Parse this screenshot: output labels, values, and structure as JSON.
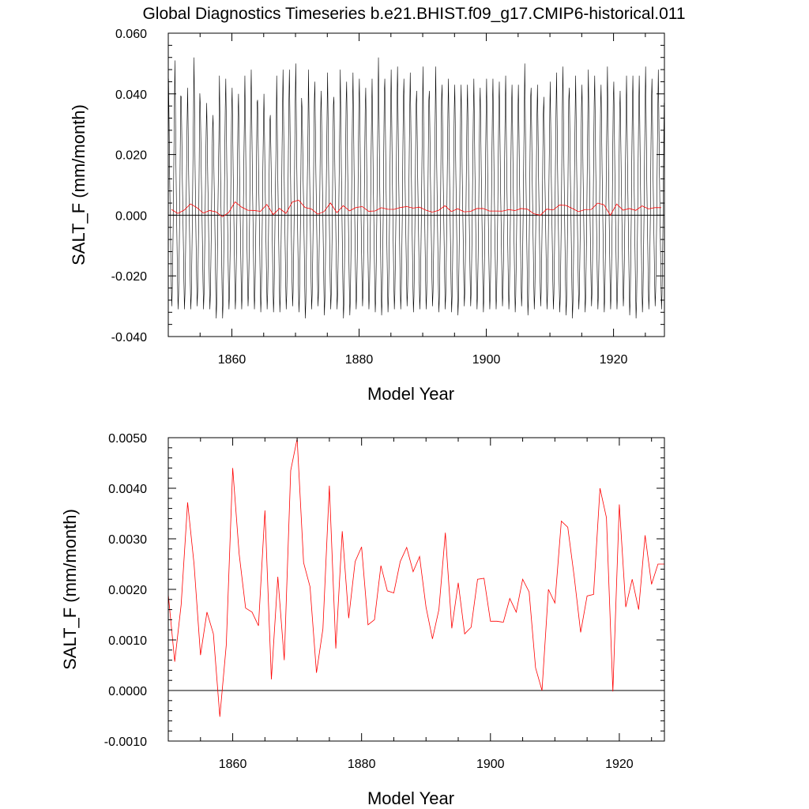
{
  "figure": {
    "title": "Global Diagnostics Timeseries b.e21.BHIST.f09_g17.CMIP6-historical.011"
  },
  "colors": {
    "monthly": "#000000",
    "annual": "#ff0000",
    "zero_line": "#000000"
  },
  "chart_data": [
    {
      "type": "line",
      "title": "Global Diagnostics Timeseries b.e21.BHIST.f09_g17.CMIP6-historical.011",
      "xlabel": "Model Year",
      "ylabel": "SALT_F (mm/month)",
      "xlim": [
        1850,
        1928
      ],
      "ylim": [
        -0.04,
        0.06
      ],
      "xticks": [
        1860,
        1880,
        1900,
        1920
      ],
      "xtick_labels": [
        "1860",
        "1880",
        "1900",
        "1920"
      ],
      "yticks": [
        -0.04,
        -0.02,
        0.0,
        0.02,
        0.04,
        0.06
      ],
      "ytick_labels": [
        "-0.040",
        "-0.020",
        "0.000",
        "0.020",
        "0.040",
        "0.060"
      ],
      "reference_line": 0.0,
      "series": [
        {
          "color": "#000000",
          "description": "monthly values, seasonal cycle roughly 12 samples per year",
          "start_year": 1850,
          "end_year": 1928,
          "monthly_cycle": [
            0.044,
            0.03,
            0.014,
            0.002,
            -0.01,
            -0.022,
            -0.031,
            -0.026,
            -0.014,
            0.0,
            0.018,
            0.034
          ],
          "annual_peaks": [
            0.045,
            0.051,
            0.039,
            0.042,
            0.052,
            0.036,
            0.037,
            0.033,
            0.046,
            0.045,
            0.042,
            0.04,
            0.046,
            0.048,
            0.038,
            0.04,
            0.033,
            0.046,
            0.048,
            0.048,
            0.05,
            0.035,
            0.048,
            0.044,
            0.041,
            0.047,
            0.039,
            0.048,
            0.044,
            0.047,
            0.045,
            0.042,
            0.045,
            0.052,
            0.045,
            0.048,
            0.049,
            0.045,
            0.047,
            0.041,
            0.049,
            0.041,
            0.049,
            0.043,
            0.045,
            0.043,
            0.043,
            0.043,
            0.045,
            0.042,
            0.045,
            0.045,
            0.044,
            0.046,
            0.043,
            0.043,
            0.05,
            0.042,
            0.043,
            0.039,
            0.044,
            0.047,
            0.049,
            0.042,
            0.046,
            0.043,
            0.048,
            0.046,
            0.043,
            0.049,
            0.044,
            0.041,
            0.046,
            0.046,
            0.046,
            0.049,
            0.045,
            0.048
          ],
          "annual_troughs": [
            -0.03,
            -0.031,
            -0.031,
            -0.031,
            -0.03,
            -0.031,
            -0.031,
            -0.034,
            -0.034,
            -0.031,
            -0.031,
            -0.031,
            -0.03,
            -0.031,
            -0.032,
            -0.031,
            -0.032,
            -0.032,
            -0.031,
            -0.03,
            -0.032,
            -0.034,
            -0.031,
            -0.03,
            -0.033,
            -0.031,
            -0.031,
            -0.034,
            -0.033,
            -0.031,
            -0.03,
            -0.031,
            -0.032,
            -0.033,
            -0.032,
            -0.031,
            -0.031,
            -0.03,
            -0.032,
            -0.031,
            -0.031,
            -0.03,
            -0.032,
            -0.031,
            -0.032,
            -0.033,
            -0.03,
            -0.03,
            -0.031,
            -0.032,
            -0.031,
            -0.031,
            -0.03,
            -0.031,
            -0.032,
            -0.03,
            -0.033,
            -0.031,
            -0.03,
            -0.031,
            -0.031,
            -0.032,
            -0.033,
            -0.034,
            -0.031,
            -0.032,
            -0.03,
            -0.031,
            -0.032,
            -0.031,
            -0.031,
            -0.03,
            -0.033,
            -0.034,
            -0.032,
            -0.031,
            -0.03,
            -0.031
          ]
        },
        {
          "color": "#ff0000",
          "description": "annual mean",
          "x": [
            1850.5,
            1851.5,
            1852.5,
            1853.5,
            1854.5,
            1855.5,
            1856.5,
            1857.5,
            1858.5,
            1859.5,
            1860.5,
            1861.5,
            1862.5,
            1863.5,
            1864.5,
            1865.5,
            1866.5,
            1867.5,
            1868.5,
            1869.5,
            1870.5,
            1871.5,
            1872.5,
            1873.5,
            1874.5,
            1875.5,
            1876.5,
            1877.5,
            1878.5,
            1879.5,
            1880.5,
            1881.5,
            1882.5,
            1883.5,
            1884.5,
            1885.5,
            1886.5,
            1887.5,
            1888.5,
            1889.5,
            1890.5,
            1891.5,
            1892.5,
            1893.5,
            1894.5,
            1895.5,
            1896.5,
            1897.5,
            1898.5,
            1899.5,
            1900.5,
            1901.5,
            1902.5,
            1903.5,
            1904.5,
            1905.5,
            1906.5,
            1907.5,
            1908.5,
            1909.5,
            1910.5,
            1911.5,
            1912.5,
            1913.5,
            1914.5,
            1915.5,
            1916.5,
            1917.5,
            1918.5,
            1919.5,
            1920.5,
            1921.5,
            1922.5,
            1923.5,
            1924.5,
            1925.5,
            1926.5,
            1927.5
          ],
          "y": [
            0.0019,
            0.00057,
            0.0017,
            0.00372,
            0.0025,
            0.0007,
            0.00155,
            0.00112,
            -0.00052,
            0.0009,
            0.0044,
            0.0027,
            0.00163,
            0.00155,
            0.00128,
            0.00356,
            0.00022,
            0.00225,
            0.0006,
            0.00435,
            0.00498,
            0.00253,
            0.00205,
            0.00035,
            0.00122,
            0.00405,
            0.00083,
            0.00315,
            0.00143,
            0.00255,
            0.00284,
            0.0013,
            0.0014,
            0.00247,
            0.00197,
            0.00193,
            0.00255,
            0.00283,
            0.00235,
            0.00265,
            0.00165,
            0.00102,
            0.0016,
            0.00312,
            0.00123,
            0.00213,
            0.00112,
            0.00125,
            0.0022,
            0.00222,
            0.00137,
            0.00137,
            0.00135,
            0.00182,
            0.00155,
            0.0022,
            0.00195,
            0.00045,
            0.0,
            0.002,
            0.00173,
            0.00335,
            0.00323,
            0.00225,
            0.00115,
            0.00187,
            0.0019,
            0.004,
            0.00342,
            -2e-05,
            0.00368,
            0.00165,
            0.0022,
            0.0016,
            0.00307,
            0.0021,
            0.0025,
            0.0025
          ]
        }
      ]
    },
    {
      "type": "line",
      "title": "",
      "xlabel": "Model Year",
      "ylabel": "SALT_F (mm/month)",
      "xlim": [
        1850,
        1927
      ],
      "ylim": [
        -0.001,
        0.005
      ],
      "xticks": [
        1860,
        1880,
        1900,
        1920
      ],
      "xtick_labels": [
        "1860",
        "1880",
        "1900",
        "1920"
      ],
      "yticks": [
        -0.001,
        0.0,
        0.001,
        0.002,
        0.003,
        0.004,
        0.005
      ],
      "ytick_labels": [
        "-0.0010",
        "0.0000",
        "0.0010",
        "0.0020",
        "0.0030",
        "0.0040",
        "0.0050"
      ],
      "reference_line": 0.0,
      "series": [
        {
          "color": "#ff0000",
          "description": "annual mean",
          "x": [
            1850,
            1851,
            1852,
            1853,
            1854,
            1855,
            1856,
            1857,
            1858,
            1859,
            1860,
            1861,
            1862,
            1863,
            1864,
            1865,
            1866,
            1867,
            1868,
            1869,
            1870,
            1871,
            1872,
            1873,
            1874,
            1875,
            1876,
            1877,
            1878,
            1879,
            1880,
            1881,
            1882,
            1883,
            1884,
            1885,
            1886,
            1887,
            1888,
            1889,
            1890,
            1891,
            1892,
            1893,
            1894,
            1895,
            1896,
            1897,
            1898,
            1899,
            1900,
            1901,
            1902,
            1903,
            1904,
            1905,
            1906,
            1907,
            1908,
            1909,
            1910,
            1911,
            1912,
            1913,
            1914,
            1915,
            1916,
            1917,
            1918,
            1919,
            1920,
            1921,
            1922,
            1923,
            1924,
            1925,
            1926,
            1927
          ],
          "y": [
            0.0019,
            0.00057,
            0.0017,
            0.00372,
            0.0025,
            0.0007,
            0.00155,
            0.00112,
            -0.00052,
            0.0009,
            0.0044,
            0.0027,
            0.00163,
            0.00155,
            0.00128,
            0.00356,
            0.00022,
            0.00225,
            0.0006,
            0.00435,
            0.00498,
            0.00253,
            0.00205,
            0.00035,
            0.00122,
            0.00405,
            0.00083,
            0.00315,
            0.00143,
            0.00255,
            0.00284,
            0.0013,
            0.0014,
            0.00247,
            0.00197,
            0.00193,
            0.00255,
            0.00283,
            0.00235,
            0.00265,
            0.00165,
            0.00102,
            0.0016,
            0.00312,
            0.00123,
            0.00213,
            0.00112,
            0.00125,
            0.0022,
            0.00222,
            0.00137,
            0.00137,
            0.00135,
            0.00182,
            0.00155,
            0.0022,
            0.00195,
            0.00045,
            0.0,
            0.002,
            0.00173,
            0.00335,
            0.00323,
            0.00225,
            0.00115,
            0.00187,
            0.0019,
            0.004,
            0.00342,
            -2e-05,
            0.00368,
            0.00165,
            0.0022,
            0.0016,
            0.00307,
            0.0021,
            0.0025,
            0.0025
          ]
        }
      ]
    }
  ]
}
